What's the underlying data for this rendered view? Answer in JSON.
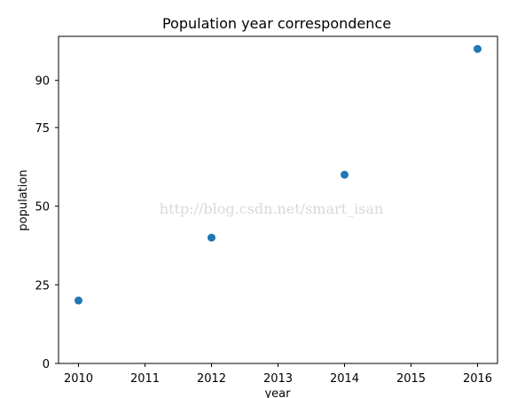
{
  "chart_data": {
    "type": "scatter",
    "title": "Population year correspondence",
    "xlabel": "year",
    "ylabel": "population",
    "x": [
      2010,
      2012,
      2014,
      2016
    ],
    "y": [
      20,
      40,
      60,
      100
    ],
    "xlim": [
      2009.7,
      2016.3
    ],
    "ylim": [
      0,
      104
    ],
    "xticks": [
      2010,
      2011,
      2012,
      2013,
      2014,
      2015,
      2016
    ],
    "xtick_labels": [
      "2010",
      "2011",
      "2012",
      "2013",
      "2014",
      "2015",
      "2016"
    ],
    "yticks": [
      0,
      25,
      50,
      75,
      90
    ],
    "ytick_labels": [
      "0",
      "25",
      "50",
      "75",
      "90"
    ],
    "grid": false,
    "marker_color": "#1f77b4"
  },
  "watermark": "http://blog.csdn.net/smart_isan"
}
